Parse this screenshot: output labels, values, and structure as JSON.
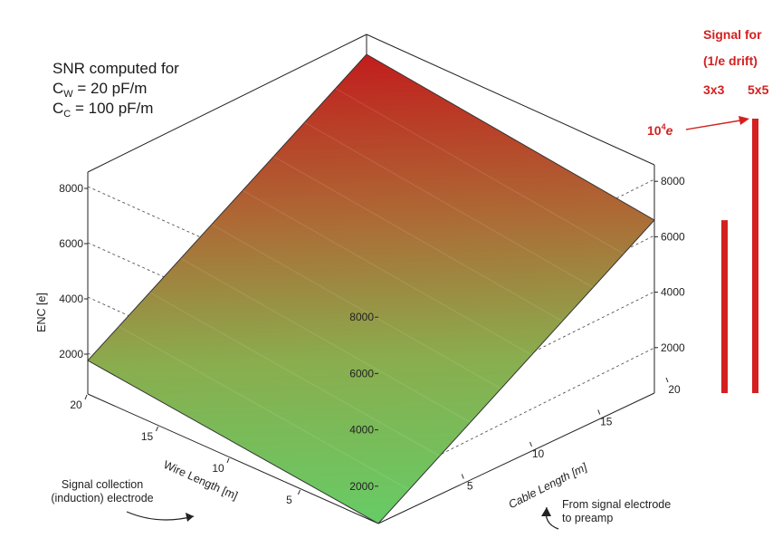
{
  "annotations": {
    "snr_title": "SNR computed for",
    "cw_symbol": "C",
    "cw_sub": "W",
    "cw_value": " = 20 pF/m",
    "cc_symbol": "C",
    "cc_sub": "C",
    "cc_value": " = 100 pF/m",
    "left_note": [
      "Signal collection",
      "(induction) electrode"
    ],
    "right_note": [
      "From signal electrode",
      "to preamp"
    ]
  },
  "signal_panel": {
    "title_line1": "Signal for",
    "title_line2": "(1/e drift)",
    "col_3x3": "3x3",
    "col_5x5": "5x5",
    "marker_base": "10",
    "marker_exp": "4",
    "marker_unit": "e",
    "color": "#d42020",
    "bars": [
      {
        "label": "3x3",
        "value": 6300
      },
      {
        "label": "5x5",
        "value": 10000
      }
    ]
  },
  "chart_data": {
    "type": "surface",
    "zlabel": "ENC [e]",
    "xlabel": "Wire Length [m]",
    "ylabel": "Cable Length [m]",
    "xlim": [
      0,
      20
    ],
    "ylim": [
      0,
      20
    ],
    "zlim": [
      0,
      9000
    ],
    "z_ticks": [
      "2000",
      "4000",
      "6000",
      "8000"
    ],
    "x_ticks": [
      "5",
      "10",
      "15",
      "20"
    ],
    "y_ticks": [
      "5",
      "10",
      "15",
      "20"
    ],
    "corners": [
      {
        "wire": 0,
        "cable": 0,
        "enc": 400
      },
      {
        "wire": 20,
        "cable": 0,
        "enc": 2000
      },
      {
        "wire": 0,
        "cable": 20,
        "enc": 6300
      },
      {
        "wire": 20,
        "cable": 20,
        "enc": 8300
      }
    ],
    "colormap": [
      "#66cc66",
      "#8ab04f",
      "#b07d3d",
      "#c23b24",
      "#c22020"
    ],
    "grid": true
  }
}
